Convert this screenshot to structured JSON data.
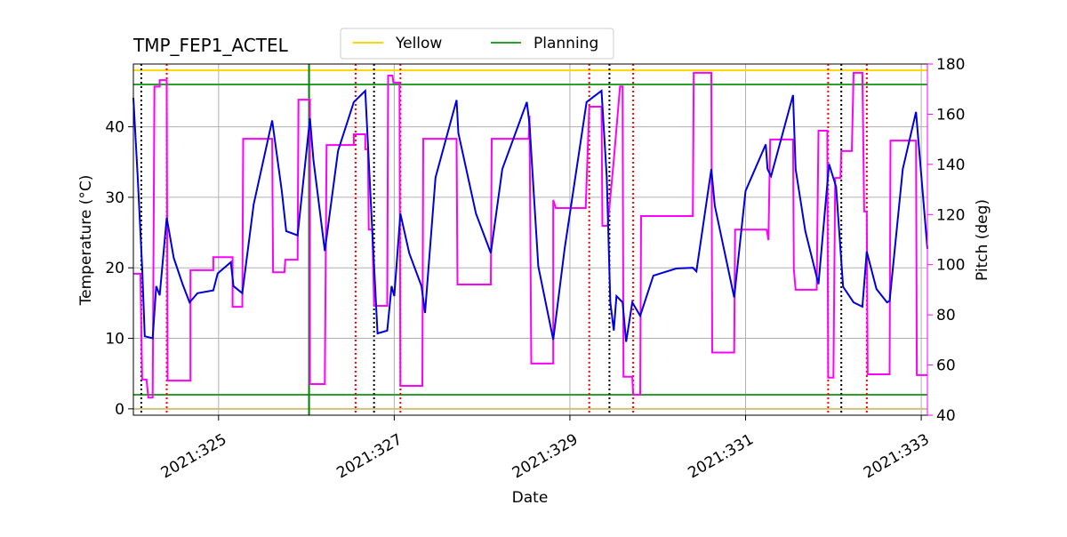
{
  "chart_data": {
    "type": "line",
    "title": "TMP_FEP1_ACTEL",
    "xlabel": "Date",
    "ylabel": "Temperature (°C)",
    "y2label": "Pitch (deg)",
    "y2color": "#ff00ff",
    "grid": true,
    "xlim": [
      324.03,
      333.07
    ],
    "xticks": [
      {
        "value": 325,
        "label": "2021:325"
      },
      {
        "value": 327,
        "label": "2021:327"
      },
      {
        "value": 329,
        "label": "2021:329"
      },
      {
        "value": 331,
        "label": "2021:331"
      },
      {
        "value": 333,
        "label": "2021:333"
      }
    ],
    "ylim": [
      -0.9,
      48.9
    ],
    "yticks": [
      0,
      10,
      20,
      30,
      40
    ],
    "y2lim": [
      40,
      180
    ],
    "y2ticks": [
      40,
      60,
      80,
      100,
      120,
      140,
      160,
      180
    ],
    "legend_position": "top",
    "legend": [
      {
        "label": "Yellow",
        "color": "#ffd700"
      },
      {
        "label": "Planning",
        "color": "#2ca02c"
      }
    ],
    "hlines": [
      {
        "y": 48,
        "color": "#ffd700"
      },
      {
        "y": 0,
        "color": "#d2c07a"
      },
      {
        "y": 46,
        "color": "#2ca02c"
      },
      {
        "y": 2,
        "color": "#2ca02c"
      }
    ],
    "vlines": [
      {
        "x": 324.12,
        "color": "#000000",
        "style": "dotted"
      },
      {
        "x": 326.77,
        "color": "#000000",
        "style": "dotted"
      },
      {
        "x": 329.45,
        "color": "#000000",
        "style": "dotted"
      },
      {
        "x": 332.09,
        "color": "#000000",
        "style": "dotted"
      },
      {
        "x": 324.41,
        "color": "#ff0000",
        "style": "dotted"
      },
      {
        "x": 326.56,
        "color": "#ff0000",
        "style": "dotted"
      },
      {
        "x": 327.07,
        "color": "#ff0000",
        "style": "dotted"
      },
      {
        "x": 329.22,
        "color": "#ff0000",
        "style": "dotted"
      },
      {
        "x": 329.72,
        "color": "#ff0000",
        "style": "dotted"
      },
      {
        "x": 331.94,
        "color": "#ff0000",
        "style": "dotted"
      },
      {
        "x": 332.38,
        "color": "#ff0000",
        "style": "dotted"
      },
      {
        "x": 326.03,
        "color": "#008000",
        "style": "solid"
      }
    ],
    "series": [
      {
        "color": "#ff00ff",
        "axis": "y2",
        "x": [
          324.03,
          324.11,
          324.13,
          324.18,
          324.2,
          324.25,
          324.27,
          324.33,
          324.33,
          324.41,
          324.42,
          324.68,
          324.68,
          324.94,
          324.94,
          325.16,
          325.16,
          325.27,
          325.28,
          325.61,
          325.62,
          325.75,
          325.76,
          325.9,
          325.91,
          326.04,
          326.04,
          326.21,
          326.23,
          326.54,
          326.54,
          326.67,
          326.67,
          326.7,
          326.71,
          326.75,
          326.77,
          326.92,
          326.93,
          326.98,
          326.99,
          327.06,
          327.07,
          327.32,
          327.33,
          327.71,
          327.72,
          328.1,
          328.11,
          328.53,
          328.54,
          328.56,
          328.81,
          328.81,
          328.84,
          329.18,
          329.22,
          329.36,
          329.37,
          329.43,
          329.5,
          329.57,
          329.6,
          329.61,
          329.71,
          329.72,
          329.8,
          329.81,
          330.4,
          330.41,
          330.61,
          330.62,
          330.87,
          330.88,
          331.24,
          331.26,
          331.28,
          331.54,
          331.55,
          331.57,
          331.81,
          331.83,
          331.93,
          331.94,
          332.0,
          332.02,
          332.08,
          332.09,
          332.21,
          332.23,
          332.33,
          332.35,
          332.38,
          332.39,
          332.64,
          332.65,
          332.94,
          332.95,
          333.07
        ],
        "values": [
          96.4,
          96.4,
          54.2,
          54.2,
          47,
          47,
          171,
          171,
          173.6,
          173.6,
          53.8,
          53.8,
          97.8,
          97.8,
          103,
          103,
          83.2,
          83.2,
          150.2,
          150.2,
          97,
          97,
          102,
          102,
          165.8,
          165.8,
          52.4,
          52.4,
          147.7,
          147.7,
          152,
          152,
          146,
          146,
          114,
          114,
          83.6,
          83.6,
          175.4,
          175.4,
          172.6,
          172.6,
          51.7,
          51.7,
          150.2,
          150.2,
          92.1,
          92.1,
          150.2,
          150.2,
          159.4,
          60.6,
          60.6,
          125.8,
          122.6,
          122.6,
          163,
          163,
          115.5,
          115.5,
          141.7,
          171,
          171,
          55.3,
          55.3,
          48.2,
          48.2,
          119.4,
          119.4,
          176.5,
          176.5,
          65,
          65,
          114,
          114,
          109.8,
          149.9,
          149.9,
          98.1,
          90,
          90,
          153.4,
          153.4,
          55,
          55,
          134.6,
          134.6,
          145.3,
          145.3,
          176.5,
          176.5,
          121.2,
          121.2,
          56.3,
          56.3,
          149.5,
          149.5,
          56,
          56
        ]
      },
      {
        "color": "#0000dd",
        "axis": "y",
        "x": [
          324.03,
          324.08,
          324.13,
          324.16,
          324.25,
          324.29,
          324.33,
          324.41,
          324.49,
          324.59,
          324.67,
          324.76,
          324.94,
          324.99,
          325.14,
          325.17,
          325.27,
          325.4,
          325.61,
          325.72,
          325.77,
          325.9,
          326.04,
          326.08,
          326.21,
          326.36,
          326.54,
          326.67,
          326.74,
          326.81,
          326.92,
          326.97,
          327.0,
          327.07,
          327.17,
          327.31,
          327.35,
          327.47,
          327.71,
          327.73,
          327.93,
          328.1,
          328.23,
          328.51,
          328.54,
          328.64,
          328.81,
          328.94,
          329.19,
          329.36,
          329.42,
          329.46,
          329.5,
          329.53,
          329.6,
          329.64,
          329.71,
          329.8,
          329.95,
          330.21,
          330.4,
          330.44,
          330.61,
          330.65,
          330.87,
          331.0,
          331.23,
          331.25,
          331.29,
          331.54,
          331.57,
          331.68,
          331.83,
          331.95,
          332.03,
          332.11,
          332.23,
          332.33,
          332.38,
          332.49,
          332.61,
          332.64,
          332.79,
          332.94,
          333.07
        ],
        "values": [
          44.1,
          32.8,
          20,
          10.3,
          10,
          17.4,
          16.1,
          27.1,
          21.4,
          17.7,
          15.1,
          16.4,
          16.8,
          19.2,
          20.8,
          17.4,
          16.4,
          29,
          40.9,
          30.9,
          25.2,
          24.6,
          41.2,
          35.3,
          22.4,
          36.6,
          43.5,
          45.1,
          27.7,
          10.7,
          11.1,
          17.4,
          16,
          27.7,
          22.1,
          17.4,
          13.6,
          32.8,
          43.8,
          39.1,
          27.7,
          22.1,
          34,
          43.5,
          40.4,
          20.2,
          9.8,
          22.7,
          43.5,
          45.1,
          32.8,
          15.1,
          11.1,
          16,
          15.1,
          9.5,
          15.1,
          13.2,
          18.9,
          19.9,
          20,
          19.5,
          34,
          28.8,
          15.8,
          30.9,
          37.5,
          34,
          33,
          44.5,
          34,
          25.2,
          17.7,
          34.7,
          31.5,
          17.3,
          15.1,
          14.5,
          22.3,
          17,
          15.1,
          15.3,
          34,
          42.1,
          22.7
        ]
      }
    ]
  }
}
